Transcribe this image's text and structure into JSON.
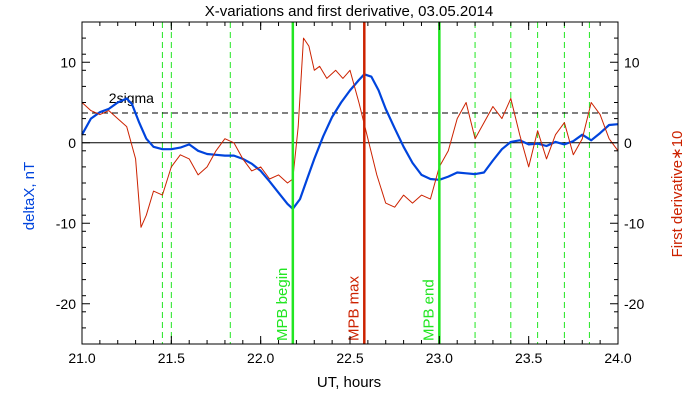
{
  "chart_data": {
    "type": "line",
    "title": "X-variations and first derivative, 03.05.2014",
    "xlabel": "UT, hours",
    "ylabel_left": "deltaX, nT",
    "ylabel_right": "First derivative∗10",
    "xlim": [
      21.0,
      24.0
    ],
    "ylim": [
      -25,
      15
    ],
    "x_ticks": [
      21.0,
      21.5,
      22.0,
      22.5,
      23.0,
      23.5,
      24.0
    ],
    "x_tick_labels": [
      "21.0",
      "21.5",
      "22.0",
      "22.5",
      "23.0",
      "23.5",
      "24.0"
    ],
    "y_ticks": [
      -20,
      -10,
      0,
      10
    ],
    "y_tick_labels": [
      "-20",
      "-10",
      "0",
      "10"
    ],
    "sigma_level": 3.7,
    "sigma_label": "2sigma",
    "zero_line": 0,
    "grid": false,
    "green_dashed_lines": [
      21.45,
      21.5,
      21.83,
      23.2,
      23.4,
      23.55,
      23.7,
      23.84
    ],
    "markers": [
      {
        "x": 22.18,
        "label": "MPB begin",
        "color": "#22e622"
      },
      {
        "x": 22.58,
        "label": "MPB max",
        "color": "#cc2200"
      },
      {
        "x": 23.0,
        "label": "MPB end",
        "color": "#22e622"
      }
    ],
    "series": [
      {
        "name": "deltaX, nT",
        "color": "#0044dd",
        "x": [
          21.0,
          21.05,
          21.1,
          21.15,
          21.2,
          21.25,
          21.28,
          21.32,
          21.36,
          21.4,
          21.45,
          21.5,
          21.55,
          21.6,
          21.65,
          21.7,
          21.75,
          21.8,
          21.85,
          21.9,
          21.95,
          22.0,
          22.05,
          22.1,
          22.15,
          22.18,
          22.22,
          22.26,
          22.3,
          22.35,
          22.4,
          22.45,
          22.5,
          22.55,
          22.58,
          22.62,
          22.66,
          22.7,
          22.75,
          22.8,
          22.85,
          22.9,
          22.95,
          23.0,
          23.05,
          23.1,
          23.15,
          23.2,
          23.25,
          23.3,
          23.35,
          23.4,
          23.45,
          23.5,
          23.55,
          23.6,
          23.65,
          23.7,
          23.75,
          23.8,
          23.85,
          23.9,
          23.95,
          24.0
        ],
        "y": [
          1.0,
          3.0,
          3.8,
          4.2,
          5.0,
          5.5,
          4.8,
          2.5,
          0.5,
          -0.5,
          -0.8,
          -0.8,
          -0.6,
          -0.2,
          -1.0,
          -1.4,
          -1.5,
          -1.6,
          -1.6,
          -2.0,
          -2.6,
          -3.5,
          -4.8,
          -6.2,
          -7.6,
          -8.2,
          -7.0,
          -4.5,
          -2.0,
          0.8,
          3.2,
          5.0,
          6.5,
          7.8,
          8.5,
          8.2,
          6.5,
          4.2,
          1.8,
          -0.5,
          -2.5,
          -4.0,
          -4.5,
          -4.6,
          -4.2,
          -3.7,
          -3.8,
          -3.9,
          -3.7,
          -2.2,
          -0.8,
          0.1,
          0.3,
          -0.2,
          -0.1,
          -0.4,
          0.1,
          -0.2,
          0.2,
          1.0,
          0.3,
          1.2,
          2.2,
          2.3
        ]
      },
      {
        "name": "First derivative∗10",
        "color": "#cc2200",
        "x": [
          21.0,
          21.05,
          21.1,
          21.15,
          21.2,
          21.25,
          21.3,
          21.33,
          21.36,
          21.4,
          21.45,
          21.5,
          21.55,
          21.6,
          21.65,
          21.7,
          21.75,
          21.8,
          21.85,
          21.9,
          21.95,
          22.0,
          22.05,
          22.1,
          22.15,
          22.18,
          22.21,
          22.24,
          22.27,
          22.3,
          22.33,
          22.37,
          22.42,
          22.46,
          22.5,
          22.55,
          22.6,
          22.65,
          22.7,
          22.75,
          22.8,
          22.85,
          22.9,
          22.95,
          23.0,
          23.05,
          23.1,
          23.15,
          23.2,
          23.25,
          23.3,
          23.35,
          23.4,
          23.45,
          23.5,
          23.55,
          23.6,
          23.65,
          23.7,
          23.75,
          23.8,
          23.85,
          23.9,
          23.95,
          24.0
        ],
        "y": [
          5.0,
          4.0,
          3.5,
          4.0,
          3.0,
          2.0,
          -2.0,
          -10.5,
          -9.0,
          -6.0,
          -6.5,
          -3.0,
          -1.5,
          -2.0,
          -4.0,
          -3.0,
          -1.0,
          0.5,
          0.0,
          -2.0,
          -3.5,
          -3.0,
          -4.5,
          -4.0,
          -5.0,
          -4.5,
          2.0,
          13.0,
          12.0,
          9.0,
          9.5,
          8.0,
          9.0,
          8.0,
          9.0,
          5.0,
          0.5,
          -4.0,
          -7.5,
          -8.0,
          -6.5,
          -7.5,
          -6.5,
          -7.0,
          -3.0,
          -1.0,
          3.0,
          5.0,
          0.5,
          2.5,
          4.5,
          3.0,
          5.5,
          1.0,
          -3.0,
          1.5,
          -2.0,
          1.0,
          2.5,
          -1.5,
          0.5,
          5.0,
          3.5,
          0.5,
          -1.0
        ]
      }
    ]
  }
}
